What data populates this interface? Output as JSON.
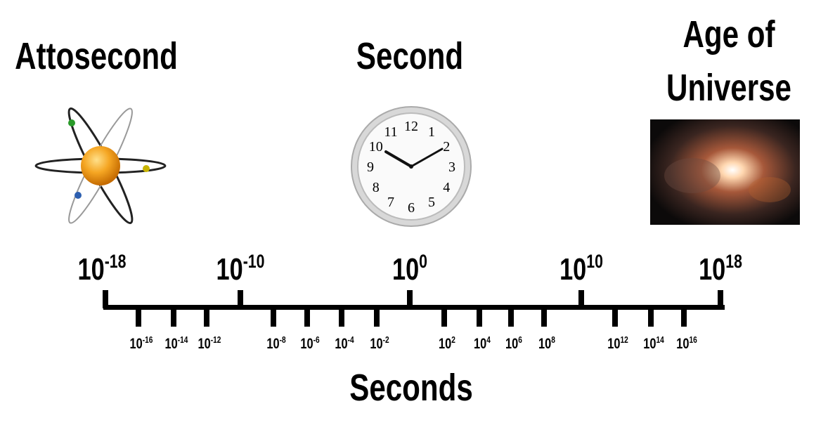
{
  "titles": {
    "left": "Attosecond",
    "center": "Second",
    "right_line1": "Age of",
    "right_line2": "Universe"
  },
  "axis_label": "Seconds",
  "major_ticks": [
    {
      "base": "10",
      "exp": "-18"
    },
    {
      "base": "10",
      "exp": "-10"
    },
    {
      "base": "10",
      "exp": "0"
    },
    {
      "base": "10",
      "exp": "10"
    },
    {
      "base": "10",
      "exp": "18"
    }
  ],
  "minor_ticks": [
    {
      "base": "10",
      "exp": "-16"
    },
    {
      "base": "10",
      "exp": "-14"
    },
    {
      "base": "10",
      "exp": "-12"
    },
    {
      "base": "10",
      "exp": "-8"
    },
    {
      "base": "10",
      "exp": "-6"
    },
    {
      "base": "10",
      "exp": "-4"
    },
    {
      "base": "10",
      "exp": "-2"
    },
    {
      "base": "10",
      "exp": "2"
    },
    {
      "base": "10",
      "exp": "4"
    },
    {
      "base": "10",
      "exp": "6"
    },
    {
      "base": "10",
      "exp": "8"
    },
    {
      "base": "10",
      "exp": "12"
    },
    {
      "base": "10",
      "exp": "14"
    },
    {
      "base": "10",
      "exp": "16"
    }
  ],
  "images": {
    "left": "atom-icon",
    "center": "wall-clock-icon",
    "right": "galaxy-nebula-image"
  },
  "clock_numbers": [
    "12",
    "1",
    "2",
    "3",
    "4",
    "5",
    "6",
    "7",
    "8",
    "9",
    "10",
    "11"
  ]
}
